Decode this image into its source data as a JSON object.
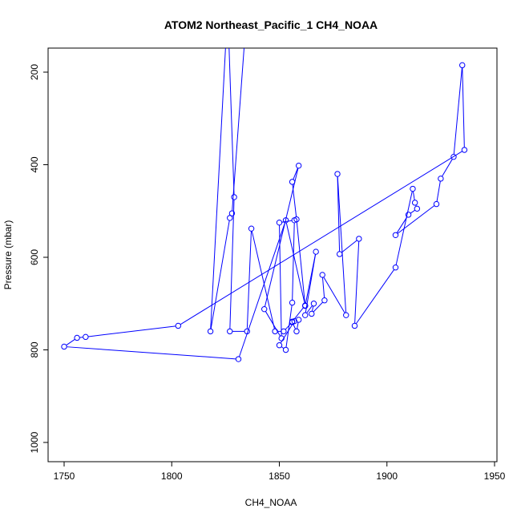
{
  "chart_data": {
    "type": "line",
    "title": "ATOM2 Northeast_Pacific_1 CH4_NOAA",
    "xlabel": "CH4_NOAA",
    "ylabel": "Pressure (mbar)",
    "xlim": [
      1745,
      1950
    ],
    "ylim": [
      1040,
      150
    ],
    "y_reversed": true,
    "x_ticks": [
      1750,
      1800,
      1850,
      1900,
      1950
    ],
    "y_ticks": [
      200,
      400,
      600,
      800,
      1000
    ],
    "grid": false,
    "legend": "none",
    "color": "#0000ff",
    "marker": "open-circle",
    "series": [
      {
        "style": "lines-and-points",
        "points": [
          [
            1835,
            60
          ],
          [
            1828,
            505
          ],
          [
            1827,
            515
          ],
          [
            1818,
            760
          ],
          [
            1826,
            60
          ],
          [
            1829,
            470
          ],
          [
            1827,
            760
          ],
          [
            1835,
            760
          ],
          [
            1837,
            538
          ],
          [
            1848,
            760
          ],
          [
            1852,
            760
          ],
          [
            1856,
            740
          ],
          [
            1858,
            760
          ],
          [
            1859,
            735
          ],
          [
            1857,
            738
          ],
          [
            1850,
            790
          ],
          [
            1853,
            800
          ],
          [
            1856,
            698
          ],
          [
            1857,
            520
          ],
          [
            1850,
            525
          ],
          [
            1851,
            775
          ],
          [
            1843,
            712
          ],
          [
            1859,
            402
          ],
          [
            1856,
            437
          ],
          [
            1858,
            518
          ],
          [
            1862,
            705
          ],
          [
            1867,
            588
          ],
          [
            1862,
            725
          ],
          [
            1866,
            700
          ],
          [
            1865,
            722
          ],
          [
            1871,
            693
          ],
          [
            1870,
            638
          ],
          [
            1881,
            725
          ],
          [
            1877,
            420
          ],
          [
            1878,
            593
          ],
          [
            1887,
            560
          ],
          [
            1885,
            748
          ],
          [
            1904,
            622
          ],
          [
            1912,
            452
          ],
          [
            1913,
            482
          ],
          [
            1914,
            495
          ],
          [
            1910,
            508
          ],
          [
            1904,
            552
          ],
          [
            1923,
            485
          ],
          [
            1925,
            430
          ],
          [
            1931,
            383
          ],
          [
            1935,
            185
          ],
          [
            1936,
            368
          ],
          [
            1803,
            748
          ],
          [
            1760,
            772
          ],
          [
            1756,
            774
          ],
          [
            1750,
            793
          ],
          [
            1831,
            820
          ],
          [
            1853,
            520
          ],
          [
            1862,
            704
          ],
          [
            1856,
            739
          ]
        ]
      }
    ]
  }
}
